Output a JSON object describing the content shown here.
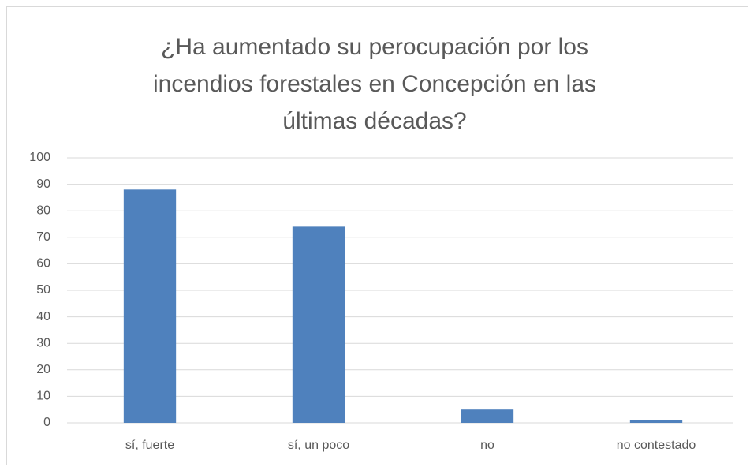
{
  "chart_data": {
    "type": "bar",
    "title": "¿Ha aumentado su perocupación por los incendios forestales en Concepción en las últimas décadas?",
    "categories": [
      "sí, fuerte",
      "sí, un poco",
      "no",
      "no contestado"
    ],
    "values": [
      88,
      74,
      5,
      1
    ],
    "color": "#4f81bd",
    "ylim": [
      0,
      100
    ],
    "yticks": [
      0,
      10,
      20,
      30,
      40,
      50,
      60,
      70,
      80,
      90,
      100
    ],
    "grid": true
  }
}
